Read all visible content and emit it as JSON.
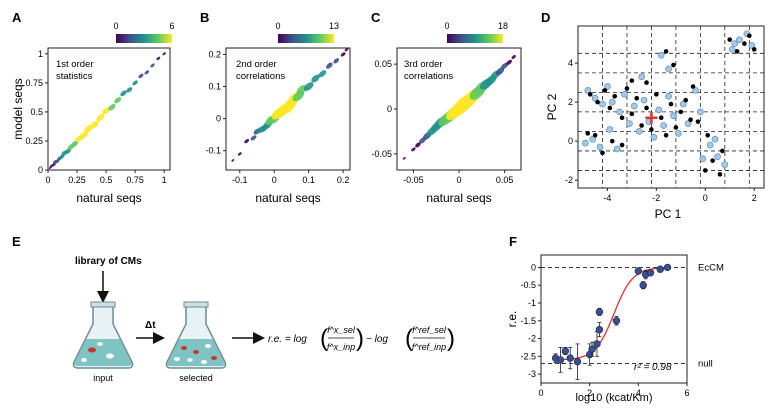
{
  "figure": {
    "panel_letters": [
      "A",
      "B",
      "C",
      "D",
      "E",
      "F"
    ]
  },
  "colormap": [
    "#440154",
    "#3b528b",
    "#21918c",
    "#5ec962",
    "#fde725"
  ],
  "chart_data": [
    {
      "panel": "A",
      "type": "scatter",
      "annotation": [
        "1st order",
        "statistics"
      ],
      "xlabel": "natural seqs",
      "ylabel": "model seqs",
      "xlim": [
        0,
        1.05
      ],
      "ylim": [
        0,
        1.05
      ],
      "xticks": [
        {
          "v": 0,
          "t": "0"
        },
        {
          "v": 0.25,
          "t": "0.25"
        },
        {
          "v": 0.5,
          "t": "0.5"
        },
        {
          "v": 0.75,
          "t": "0.75"
        },
        {
          "v": 1,
          "t": "1"
        }
      ],
      "yticks": [
        {
          "v": 0,
          "t": "0"
        },
        {
          "v": 0.25,
          "t": "0.25"
        },
        {
          "v": 0.5,
          "t": "0.5"
        },
        {
          "v": 0.75,
          "t": "0.75"
        },
        {
          "v": 1,
          "t": "1"
        }
      ],
      "colorbar": {
        "min": "0",
        "max": "6"
      },
      "points": [
        [
          0.02,
          0.02
        ],
        [
          0.03,
          0.035
        ],
        [
          0.05,
          0.045
        ],
        [
          0.06,
          0.07
        ],
        [
          0.08,
          0.075
        ],
        [
          0.1,
          0.1
        ],
        [
          0.12,
          0.115
        ],
        [
          0.14,
          0.145
        ],
        [
          0.17,
          0.16
        ],
        [
          0.2,
          0.2
        ],
        [
          0.23,
          0.225
        ],
        [
          0.27,
          0.27
        ],
        [
          0.31,
          0.3
        ],
        [
          0.35,
          0.355
        ],
        [
          0.4,
          0.39
        ],
        [
          0.45,
          0.45
        ],
        [
          0.5,
          0.51
        ],
        [
          0.55,
          0.54
        ],
        [
          0.6,
          0.6
        ],
        [
          0.65,
          0.66
        ],
        [
          0.7,
          0.69
        ],
        [
          0.75,
          0.75
        ],
        [
          0.8,
          0.81
        ],
        [
          0.85,
          0.84
        ],
        [
          0.9,
          0.9
        ],
        [
          0.95,
          0.96
        ],
        [
          1.0,
          1.0
        ]
      ]
    },
    {
      "panel": "B",
      "type": "scatter",
      "annotation": [
        "2nd order",
        "correlations"
      ],
      "xlabel": "natural seqs",
      "ylabel": "",
      "xlim": [
        -0.14,
        0.22
      ],
      "ylim": [
        -0.16,
        0.22
      ],
      "xticks": [
        {
          "v": -0.1,
          "t": "-0.1"
        },
        {
          "v": 0,
          "t": "0"
        },
        {
          "v": 0.1,
          "t": "0.1"
        },
        {
          "v": 0.2,
          "t": "0.2"
        }
      ],
      "yticks": [
        {
          "v": -0.1,
          "t": "-0.1"
        },
        {
          "v": 0,
          "t": "0"
        },
        {
          "v": 0.1,
          "t": "0.1"
        },
        {
          "v": 0.2,
          "t": "0.2"
        }
      ],
      "colorbar": {
        "min": "0",
        "max": "13"
      },
      "points": [
        [
          -0.12,
          -0.13
        ],
        [
          -0.1,
          -0.11
        ],
        [
          -0.08,
          -0.07
        ],
        [
          -0.06,
          -0.06
        ],
        [
          -0.05,
          -0.04
        ],
        [
          -0.04,
          -0.035
        ],
        [
          -0.03,
          -0.03
        ],
        [
          -0.02,
          -0.02
        ],
        [
          -0.01,
          -0.005
        ],
        [
          0,
          0
        ],
        [
          0.01,
          0.015
        ],
        [
          0.02,
          0.02
        ],
        [
          0.03,
          0.03
        ],
        [
          0.04,
          0.035
        ],
        [
          0.05,
          0.05
        ],
        [
          0.06,
          0.065
        ],
        [
          0.07,
          0.07
        ],
        [
          0.08,
          0.09
        ],
        [
          0.1,
          0.1
        ],
        [
          0.12,
          0.125
        ],
        [
          0.14,
          0.14
        ],
        [
          0.16,
          0.165
        ],
        [
          0.18,
          0.18
        ],
        [
          0.2,
          0.2
        ],
        [
          0.21,
          0.215
        ]
      ]
    },
    {
      "panel": "C",
      "type": "scatter",
      "annotation": [
        "3rd order",
        "correlations"
      ],
      "xlabel": "natural seqs",
      "ylabel": "",
      "xlim": [
        -0.068,
        0.068
      ],
      "ylim": [
        -0.068,
        0.068
      ],
      "xticks": [
        {
          "v": -0.05,
          "t": "-0.05"
        },
        {
          "v": 0,
          "t": "0"
        },
        {
          "v": 0.05,
          "t": "0.05"
        }
      ],
      "yticks": [
        {
          "v": -0.05,
          "t": "-0.05"
        },
        {
          "v": 0,
          "t": "0"
        },
        {
          "v": 0.05,
          "t": "0.05"
        }
      ],
      "colorbar": {
        "min": "0",
        "max": "18"
      },
      "points": [
        [
          -0.06,
          -0.055
        ],
        [
          -0.05,
          -0.045
        ],
        [
          -0.045,
          -0.04
        ],
        [
          -0.04,
          -0.035
        ],
        [
          -0.035,
          -0.03
        ],
        [
          -0.03,
          -0.025
        ],
        [
          -0.025,
          -0.02
        ],
        [
          -0.02,
          -0.015
        ],
        [
          -0.015,
          -0.012
        ],
        [
          -0.01,
          -0.008
        ],
        [
          -0.005,
          -0.004
        ],
        [
          0,
          0
        ],
        [
          0.005,
          0.005
        ],
        [
          0.01,
          0.009
        ],
        [
          0.015,
          0.014
        ],
        [
          0.02,
          0.018
        ],
        [
          0.025,
          0.024
        ],
        [
          0.03,
          0.028
        ],
        [
          0.035,
          0.032
        ],
        [
          0.04,
          0.038
        ],
        [
          0.045,
          0.042
        ],
        [
          0.05,
          0.048
        ],
        [
          0.055,
          0.052
        ],
        [
          0.06,
          0.058
        ]
      ]
    },
    {
      "panel": "D",
      "type": "scatter",
      "xlabel": "PC 1",
      "ylabel": "PC 2",
      "xlim": [
        -5.2,
        2.4
      ],
      "ylim": [
        -2.4,
        5.9
      ],
      "xticks": [
        {
          "v": -4,
          "t": "-4"
        },
        {
          "v": -2,
          "t": "-2"
        },
        {
          "v": 0,
          "t": "0"
        },
        {
          "v": 2,
          "t": "2"
        }
      ],
      "yticks": [
        {
          "v": -2,
          "t": "-2"
        },
        {
          "v": 0,
          "t": "0"
        },
        {
          "v": 2,
          "t": "2"
        },
        {
          "v": 4,
          "t": "4"
        }
      ],
      "grid_x": [
        -4.2,
        -3.2,
        -2.2,
        -1.2,
        -0.2,
        0.8,
        1.8
      ],
      "grid_y": [
        -1.5,
        -0.5,
        0.5,
        1.5,
        2.5,
        3.5,
        4.5
      ],
      "reference_point": {
        "x": -2.2,
        "y": 1.2
      },
      "series": [
        {
          "name": "natural",
          "color": "#a6c8e4",
          "points": [
            [
              -4.8,
              2.6
            ],
            [
              -4.5,
              2.2
            ],
            [
              -4.2,
              1.9
            ],
            [
              -4.0,
              2.8
            ],
            [
              -3.8,
              2.0
            ],
            [
              -3.5,
              1.5
            ],
            [
              -3.3,
              2.4
            ],
            [
              -3.1,
              0.9
            ],
            [
              -2.9,
              1.8
            ],
            [
              -2.7,
              0.5
            ],
            [
              -2.5,
              2.1
            ],
            [
              -2.3,
              1.0
            ],
            [
              -2.1,
              0.2
            ],
            [
              -1.9,
              1.6
            ],
            [
              -1.7,
              0.8
            ],
            [
              -1.5,
              2.3
            ],
            [
              -1.3,
              1.3
            ],
            [
              -1.1,
              0.4
            ],
            [
              -0.9,
              1.9
            ],
            [
              -0.7,
              0.9
            ],
            [
              -4.6,
              0.1
            ],
            [
              -4.3,
              -0.3
            ],
            [
              -4.9,
              -0.1
            ],
            [
              -3.9,
              0.6
            ],
            [
              -3.6,
              -0.4
            ],
            [
              -0.4,
              2.6
            ],
            [
              -0.2,
              1.5
            ],
            [
              0.2,
              -0.2
            ],
            [
              0.5,
              -0.8
            ],
            [
              0.8,
              -1.2
            ],
            [
              -0.1,
              -0.9
            ],
            [
              0.4,
              0.1
            ],
            [
              1.1,
              4.7
            ],
            [
              1.4,
              5.2
            ],
            [
              1.7,
              5.5
            ],
            [
              1.9,
              4.9
            ],
            [
              1.2,
              5.0
            ],
            [
              -1.8,
              4.4
            ],
            [
              -1.5,
              3.7
            ],
            [
              -2.6,
              3.3
            ]
          ]
        },
        {
          "name": "model",
          "color": "#000000",
          "points": [
            [
              -4.7,
              2.4
            ],
            [
              -4.4,
              2.0
            ],
            [
              -4.1,
              2.6
            ],
            [
              -3.9,
              1.7
            ],
            [
              -3.7,
              2.3
            ],
            [
              -3.4,
              1.2
            ],
            [
              -3.2,
              2.7
            ],
            [
              -3.0,
              1.4
            ],
            [
              -2.8,
              2.2
            ],
            [
              -2.6,
              0.8
            ],
            [
              -2.4,
              1.7
            ],
            [
              -2.2,
              0.6
            ],
            [
              -2.0,
              2.4
            ],
            [
              -1.8,
              1.2
            ],
            [
              -1.6,
              0.3
            ],
            [
              -1.4,
              1.9
            ],
            [
              -1.2,
              0.7
            ],
            [
              -1.0,
              1.5
            ],
            [
              -0.8,
              2.1
            ],
            [
              -0.6,
              1.1
            ],
            [
              -4.5,
              0.3
            ],
            [
              -4.2,
              -0.6
            ],
            [
              -4.8,
              0.4
            ],
            [
              -3.8,
              0.0
            ],
            [
              -3.4,
              -0.2
            ],
            [
              -0.5,
              2.8
            ],
            [
              -0.3,
              1.0
            ],
            [
              0.1,
              0.3
            ],
            [
              0.3,
              -1.0
            ],
            [
              0.7,
              -0.5
            ],
            [
              0.0,
              -1.5
            ],
            [
              0.6,
              -1.7
            ],
            [
              1.0,
              5.2
            ],
            [
              1.3,
              4.6
            ],
            [
              1.6,
              5.0
            ],
            [
              1.8,
              5.4
            ],
            [
              2.0,
              4.7
            ],
            [
              -1.6,
              4.6
            ],
            [
              -1.3,
              3.9
            ],
            [
              -2.4,
              3.0
            ],
            [
              -3.0,
              3.1
            ]
          ]
        }
      ]
    },
    {
      "panel": "F",
      "type": "scatter",
      "xlabel": "log10 (kcat/Km)",
      "ylabel": "r.e.",
      "xlim": [
        0,
        6
      ],
      "ylim": [
        -3.25,
        0.35
      ],
      "xticks": [
        {
          "v": 0,
          "t": "0"
        },
        {
          "v": 2,
          "t": "2"
        },
        {
          "v": 4,
          "t": "4"
        },
        {
          "v": 6,
          "t": "6"
        }
      ],
      "yticks": [
        {
          "v": -3,
          "t": "-3"
        },
        {
          "v": -2.5,
          "t": "-2.5"
        },
        {
          "v": -2,
          "t": "-2"
        },
        {
          "v": -1.5,
          "t": "-1.5"
        },
        {
          "v": -1,
          "t": "-1"
        },
        {
          "v": -0.5,
          "t": "-0.5"
        },
        {
          "v": 0,
          "t": "0"
        }
      ],
      "reference_lines": [
        {
          "y": 0,
          "label": "EcCM"
        },
        {
          "y": -2.7,
          "label": "null"
        }
      ],
      "fit_curve": {
        "x0": 3.0,
        "k": 2.6,
        "low": -2.6,
        "high": 0
      },
      "r2_label": "r² = 0.98",
      "points": [
        {
          "x": 0.6,
          "y": -2.55,
          "err": 0.12
        },
        {
          "x": 0.8,
          "y": -2.6,
          "err": 0.35
        },
        {
          "x": 1.0,
          "y": -2.35,
          "err": 0.1
        },
        {
          "x": 1.2,
          "y": -2.55,
          "err": 0.3
        },
        {
          "x": 1.5,
          "y": -2.65,
          "err": 0.5
        },
        {
          "x": 2.0,
          "y": -2.45,
          "err": 0.3
        },
        {
          "x": 2.1,
          "y": -2.3,
          "err": 0.2
        },
        {
          "x": 2.3,
          "y": -2.15,
          "err": 0.35
        },
        {
          "x": 2.4,
          "y": -1.75,
          "err": 0.2
        },
        {
          "x": 2.4,
          "y": -1.25,
          "err": 0.1
        },
        {
          "x": 3.1,
          "y": -1.5,
          "err": 0.12
        },
        {
          "x": 4.2,
          "y": -0.5,
          "err": 0.1
        },
        {
          "x": 4.3,
          "y": -0.2,
          "err": 0.12
        },
        {
          "x": 4.5,
          "y": -0.15,
          "err": 0.06
        },
        {
          "x": 4.9,
          "y": -0.05,
          "err": 0.05
        },
        {
          "x": 5.2,
          "y": 0.0,
          "err": 0.04
        },
        {
          "x": 4.0,
          "y": -0.1,
          "err": 0.08
        }
      ]
    }
  ],
  "schematic": {
    "library_label": "library of CMs",
    "step_label": "Δt",
    "input_label": "input",
    "selected_label": "selected",
    "equation": {
      "lhs": "r.e. = log",
      "term1_num": "f^x_sel",
      "term1_den": "f^x_inp",
      "minus": "− log",
      "term2_num": "f^ref_sel",
      "term2_den": "f^ref_inp"
    },
    "flask_liquid": "#7fc3c3",
    "dot_colors": [
      "#c0392b",
      "#ffffff",
      "#ecf0f1"
    ]
  }
}
